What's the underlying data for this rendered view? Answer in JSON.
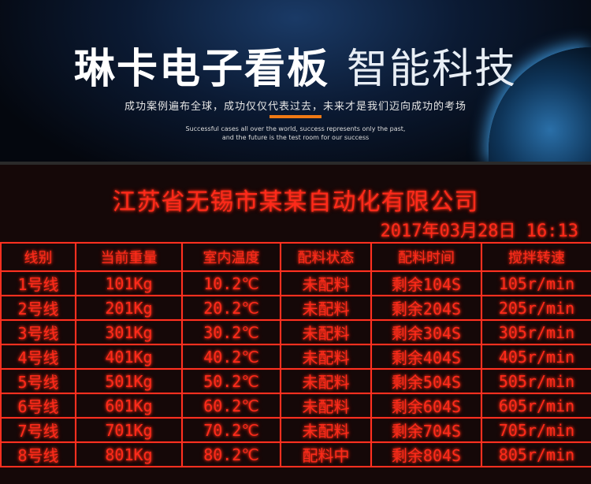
{
  "banner": {
    "title_bold": "琳卡电子看板",
    "title_light": "智能科技",
    "subtitle_cn": "成功案例遍布全球，成功仅仅代表过去，未来才是我们迈向成功的考场",
    "subtitle_en_1": "Successful cases all over the world, success represents only the past,",
    "subtitle_en_2": "and the future is the test room for our success",
    "accent": "#f07a14"
  },
  "board": {
    "company": "江苏省无锡市某某自动化有限公司",
    "datetime": "2017年03月28日 16:13",
    "led_color": "#ff2a1a",
    "headers": [
      "线别",
      "当前重量",
      "室内温度",
      "配料状态",
      "配料时间",
      "搅拌转速"
    ],
    "rows": [
      [
        "1号线",
        "101Kg",
        "10.2℃",
        "未配料",
        "剩余104S",
        "105r/min"
      ],
      [
        "2号线",
        "201Kg",
        "20.2℃",
        "未配料",
        "剩余204S",
        "205r/min"
      ],
      [
        "3号线",
        "301Kg",
        "30.2℃",
        "未配料",
        "剩余304S",
        "305r/min"
      ],
      [
        "4号线",
        "401Kg",
        "40.2℃",
        "未配料",
        "剩余404S",
        "405r/min"
      ],
      [
        "5号线",
        "501Kg",
        "50.2℃",
        "未配料",
        "剩余504S",
        "505r/min"
      ],
      [
        "6号线",
        "601Kg",
        "60.2℃",
        "未配料",
        "剩余604S",
        "605r/min"
      ],
      [
        "7号线",
        "701Kg",
        "70.2℃",
        "未配料",
        "剩余704S",
        "705r/min"
      ],
      [
        "8号线",
        "801Kg",
        "80.2℃",
        "配料中",
        "剩余804S",
        "805r/min"
      ]
    ]
  }
}
